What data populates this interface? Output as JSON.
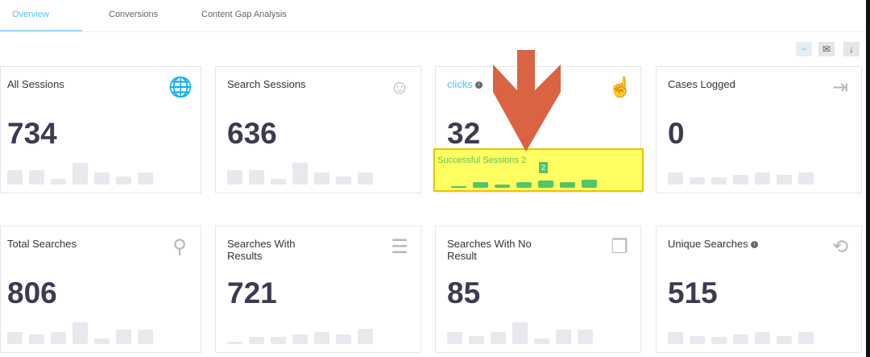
{
  "tabs": [
    {
      "label": "Overview",
      "active": true
    },
    {
      "label": "Conversions"
    },
    {
      "label": "Content Gap Analysis"
    }
  ],
  "toolbar": {
    "collapse": "−",
    "email": "✉",
    "download": "↓"
  },
  "cards": [
    {
      "title": "All Sessions",
      "value": "734",
      "icon": "globe-icon",
      "spark": [
        0.6,
        0.6,
        0.25,
        0.9,
        0.5,
        0.35,
        0.5
      ]
    },
    {
      "title": "Search Sessions",
      "value": "636",
      "icon": "face-icon",
      "spark": [
        0.6,
        0.6,
        0.25,
        0.9,
        0.5,
        0.35,
        0.5
      ]
    },
    {
      "title": "clicks",
      "value": "32",
      "icon": "tap-icon",
      "info": true,
      "accent": "#55c1f5"
    },
    {
      "title": "Cases Logged",
      "value": "0",
      "icon": "sign-in-icon",
      "spark": [
        0.5,
        0.3,
        0.3,
        0.4,
        0.5,
        0.4,
        0.5
      ]
    },
    {
      "title": "Total Searches",
      "value": "806",
      "icon": "search-icon",
      "spark": [
        0.5,
        0.4,
        0.5,
        0.9,
        0.25,
        0.6,
        0.6
      ]
    },
    {
      "title": "Searches With Results",
      "value": "721",
      "icon": "list-icon",
      "spark": [
        0.1,
        0.3,
        0.3,
        0.4,
        0.5,
        0.4,
        0.65
      ]
    },
    {
      "title": "Searches With No Result",
      "value": "85",
      "icon": "copy-icon",
      "spark": [
        0.5,
        0.35,
        0.5,
        0.9,
        0.25,
        0.6,
        0.6
      ]
    },
    {
      "title": "Unique Searches",
      "value": "515",
      "icon": "search-refresh-icon",
      "info": true,
      "spark": [
        0.5,
        0.35,
        0.3,
        0.4,
        0.5,
        0.35,
        0.5
      ]
    }
  ],
  "tooltip": {
    "label": "Successful Sessions",
    "value": "2",
    "bar_value": "2",
    "bars": [
      0.2,
      0.55,
      0.35,
      0.6,
      0.75,
      0.6,
      0.8
    ],
    "color": "#55c466"
  },
  "highlight_color": "#ffff50"
}
